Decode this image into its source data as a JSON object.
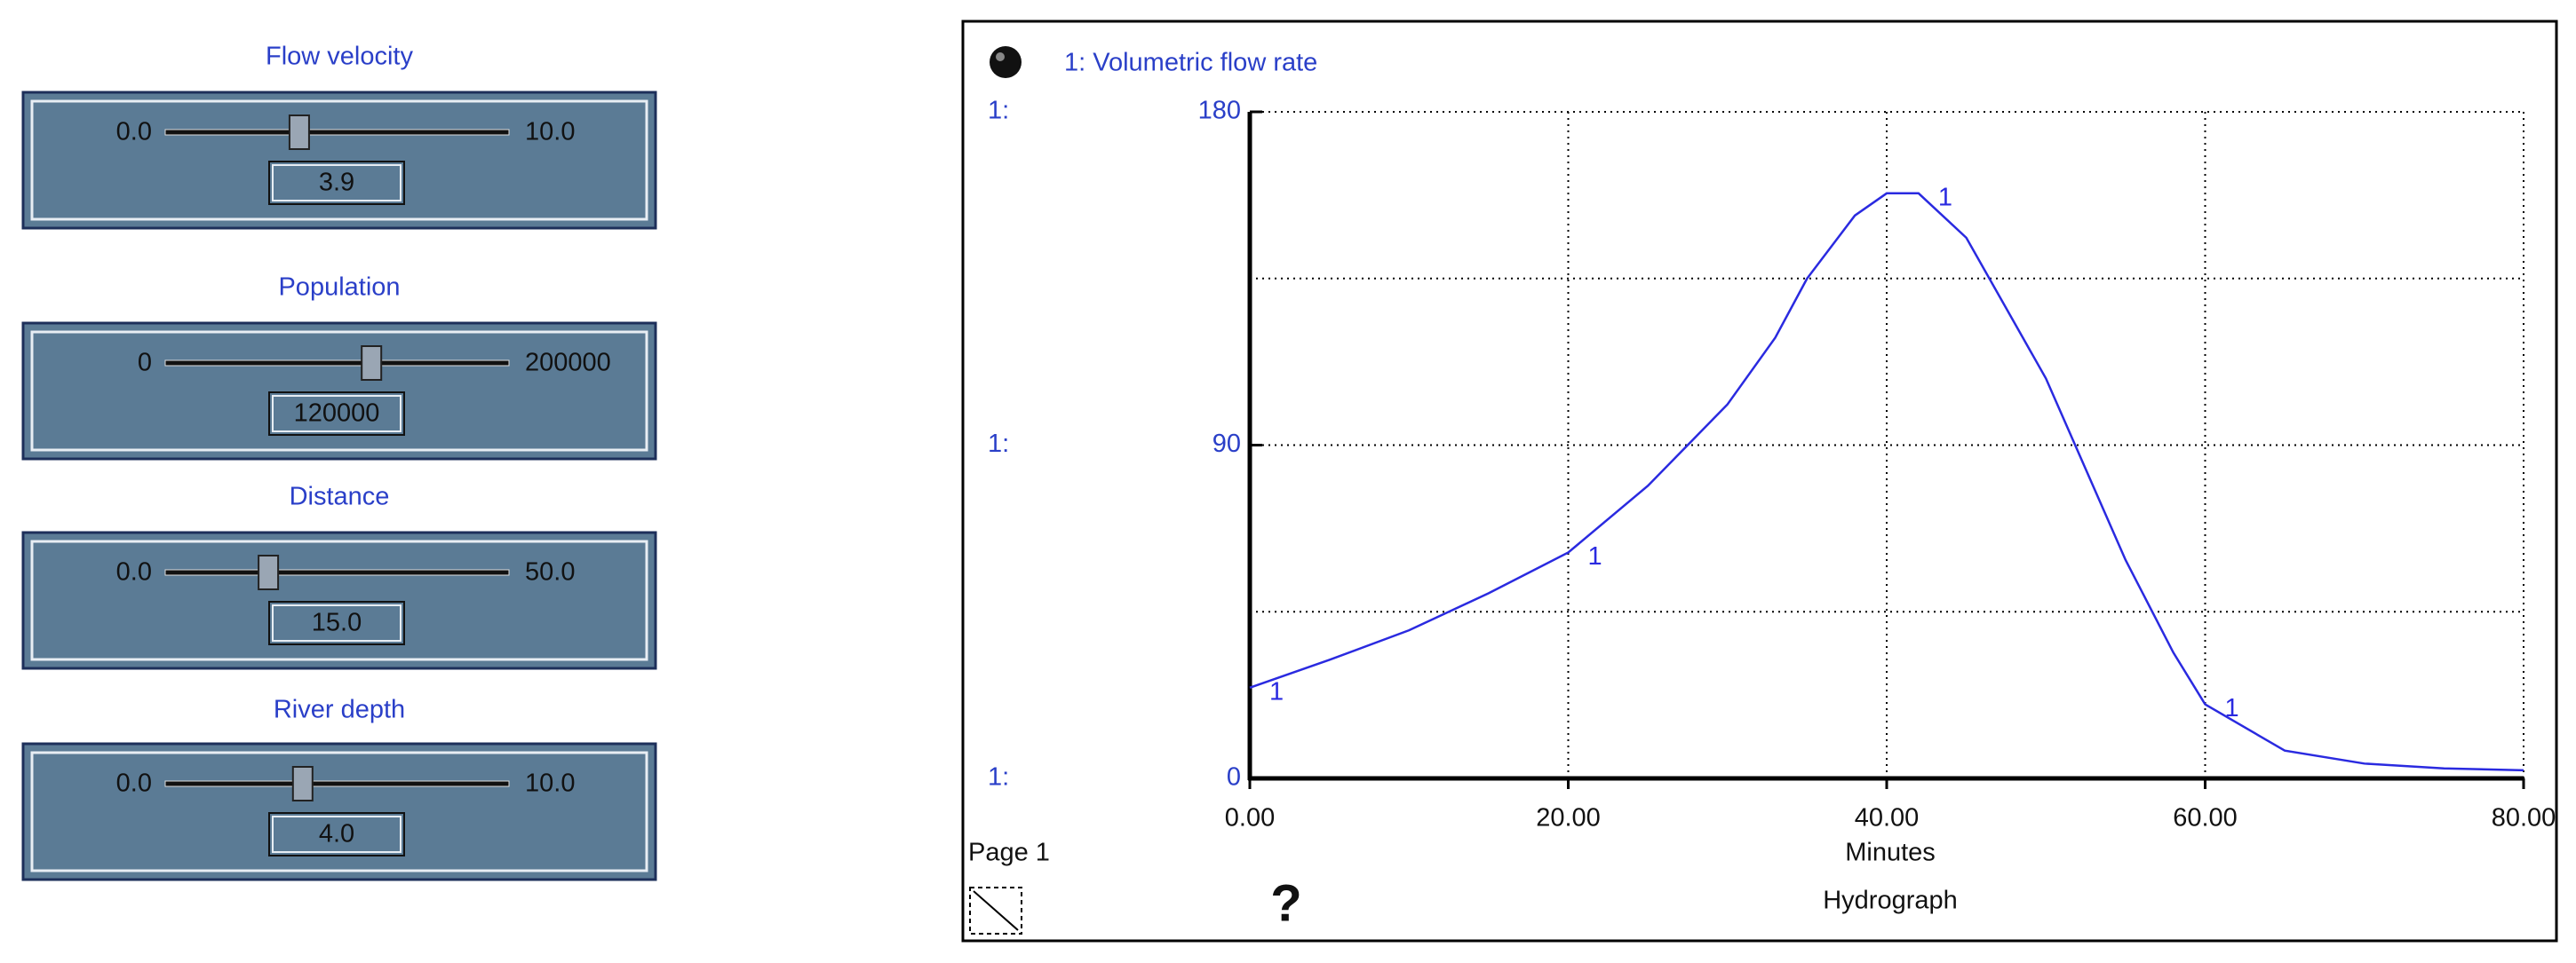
{
  "sliders": [
    {
      "label": "Flow velocity",
      "min": {
        "value": 0,
        "label": "0.0"
      },
      "max": {
        "value": 10,
        "label": "10.0"
      },
      "value": {
        "value": 3.9,
        "label": "3.9"
      }
    },
    {
      "label": "Population",
      "min": 0,
      "max": 200000,
      "value": 120000
    },
    {
      "label": "Distance",
      "min": {
        "value": 0,
        "label": "0.0"
      },
      "max": {
        "value": 50,
        "label": "50.0"
      },
      "value": {
        "value": 15,
        "label": "15.0"
      }
    },
    {
      "label": "River depth",
      "min": {
        "value": 0,
        "label": "0.0"
      },
      "max": {
        "value": 10,
        "label": "10.0"
      },
      "value": {
        "value": 4,
        "label": "4.0"
      }
    }
  ],
  "graph": {
    "type": "line",
    "title": "1: Volumetric flow rate",
    "series_name": "1",
    "color": "#2a2ae0",
    "scale_labels": [
      "1:",
      "1:",
      "1:"
    ],
    "x": [
      0,
      5,
      10,
      15,
      20,
      25,
      30,
      33,
      35,
      38,
      40,
      42,
      45,
      50,
      55,
      58,
      60,
      65,
      70,
      75,
      80
    ],
    "values": [
      24.5,
      32,
      40,
      50,
      61,
      79,
      101,
      119,
      135,
      152,
      158,
      158,
      146,
      108,
      59,
      34,
      20,
      7.5,
      4,
      2.7,
      2.2
    ],
    "xlim": [
      0,
      80
    ],
    "ylim": [
      0,
      180
    ],
    "xticks": [
      {
        "value": 0,
        "label": "0.00"
      },
      {
        "value": 20,
        "label": "20.00"
      },
      {
        "value": 40,
        "label": "40.00"
      },
      {
        "value": 60,
        "label": "60.00"
      },
      {
        "value": 80,
        "label": "80.00"
      }
    ],
    "yticks": [
      180,
      90,
      0
    ],
    "grid_x": [
      20,
      40,
      60,
      80
    ],
    "grid_y": [
      45,
      90,
      135,
      180
    ],
    "xlabel": "Minutes",
    "caption": "Hydrograph",
    "page": "Page 1",
    "help": "?"
  }
}
